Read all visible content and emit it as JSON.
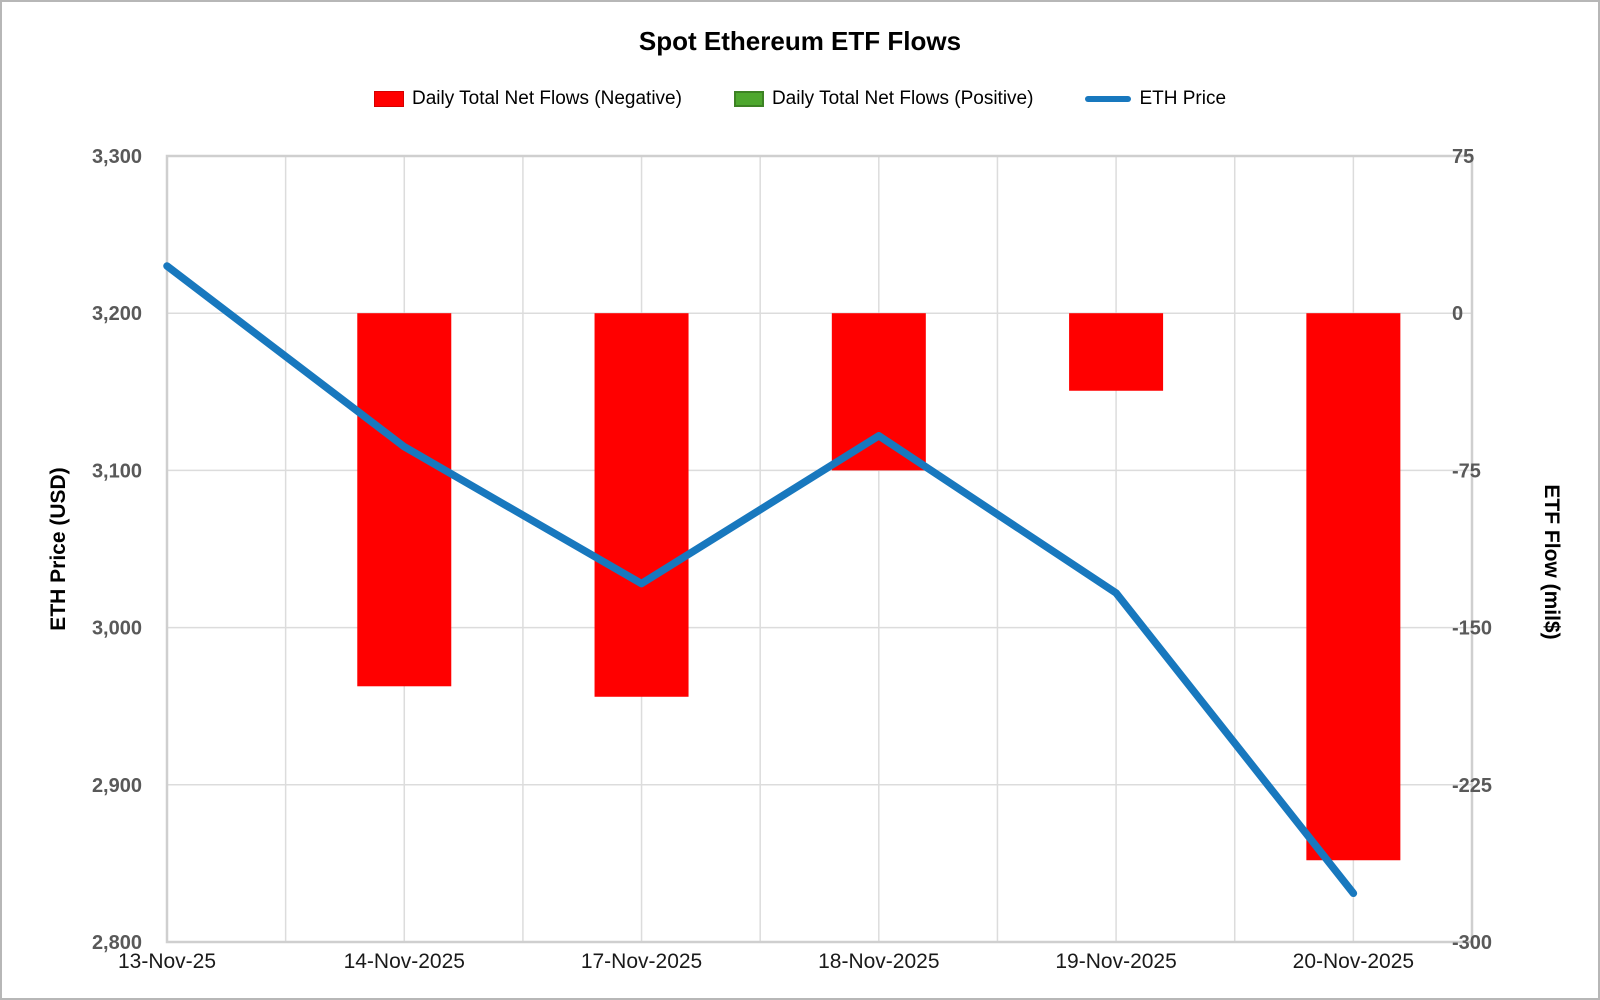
{
  "title": "Spot Ethereum ETF Flows",
  "colors": {
    "negative_bar": "#ff0000",
    "positive_bar": "#4ea72e",
    "positive_bar_border": "#3d8224",
    "price_line": "#1878be",
    "gridline": "#dcdcdc",
    "plot_border": "#cfcfcf",
    "left_tick_text": "#595959",
    "right_tick_text": "#595959",
    "x_tick_text": "#1a1a1a"
  },
  "chart_data": {
    "type": "combo",
    "title": "Spot Ethereum ETF Flows",
    "categories": [
      "13-Nov-25",
      "14-Nov-2025",
      "17-Nov-2025",
      "18-Nov-2025",
      "19-Nov-2025",
      "20-Nov-2025"
    ],
    "series": [
      {
        "name": "Daily Total Net Flows (Negative)",
        "type": "bar",
        "axis": "right",
        "values": [
          null,
          -178,
          -183,
          -75,
          -37,
          -261
        ]
      },
      {
        "name": "Daily Total Net Flows (Positive)",
        "type": "bar",
        "axis": "right",
        "values": [
          null,
          null,
          null,
          null,
          null,
          null
        ]
      },
      {
        "name": "ETH Price",
        "type": "line",
        "axis": "left",
        "values": [
          3230,
          3115,
          3028,
          3122,
          3022,
          2831
        ]
      }
    ],
    "left_axis": {
      "title": "ETH Price (USD)",
      "min": 2800,
      "max": 3300,
      "tick_values": [
        3300,
        3200,
        3100,
        3000,
        2900,
        2800
      ],
      "tick_labels": [
        "3,300",
        "3,200",
        "3,100",
        "3,000",
        "2,900",
        "2,800"
      ]
    },
    "right_axis": {
      "title": "ETF Flow (mil$)",
      "min": -300,
      "max": 75,
      "tick_values": [
        75,
        0,
        -75,
        -150,
        -225,
        -300
      ],
      "tick_labels": [
        "75",
        "0",
        "-75",
        "-150",
        "-225",
        "-300"
      ]
    },
    "legend_position": "top",
    "grid": true
  }
}
